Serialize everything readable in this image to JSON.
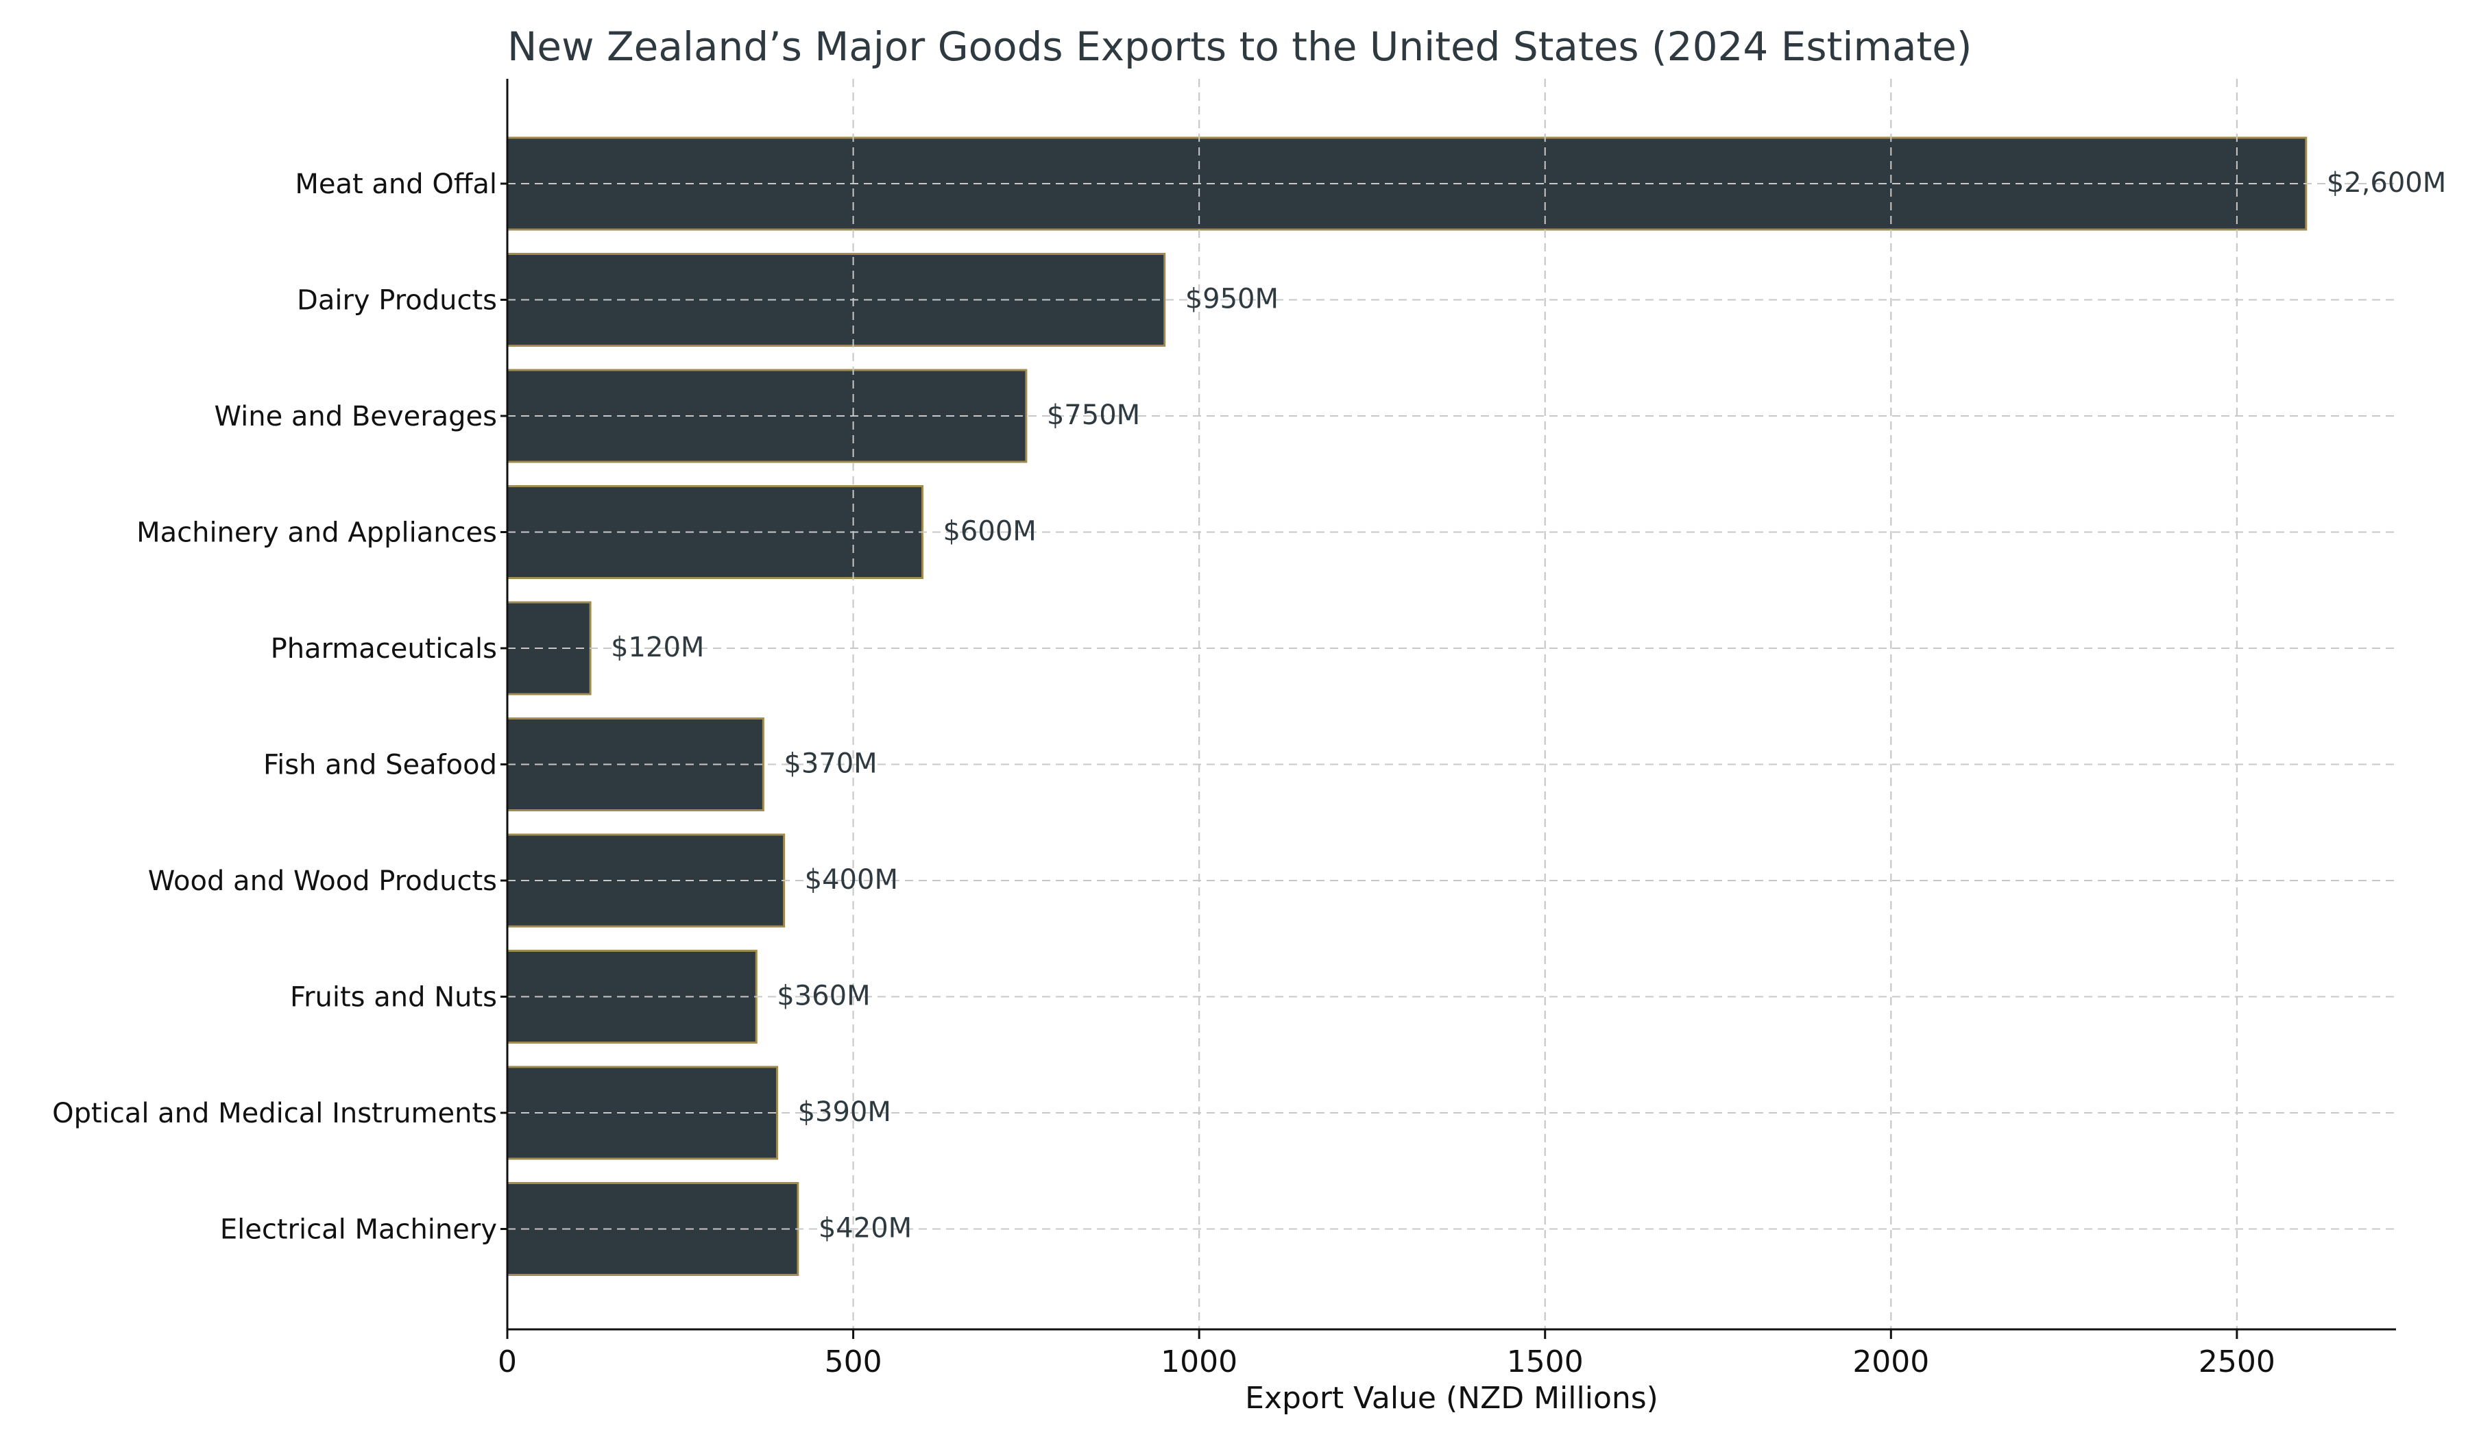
{
  "chart_data": {
    "type": "bar",
    "orientation": "horizontal",
    "title": "New Zealand’s Major Goods Exports to the United States (2024 Estimate)",
    "xlabel": "Export Value (NZD Millions)",
    "ylabel": "",
    "xlim": [
      0,
      2730
    ],
    "xticks": [
      0,
      500,
      1000,
      1500,
      2000,
      2500
    ],
    "grid": true,
    "categories": [
      "Meat and Offal",
      "Dairy Products",
      "Wine and Beverages",
      "Machinery and Appliances",
      "Pharmaceuticals",
      "Fish and Seafood",
      "Wood and Wood Products",
      "Fruits and Nuts",
      "Optical and Medical Instruments",
      "Electrical Machinery"
    ],
    "values": [
      2600,
      950,
      750,
      600,
      120,
      370,
      400,
      360,
      390,
      420
    ],
    "value_labels": [
      "$2,600M",
      "$950M",
      "$750M",
      "$600M",
      "$120M",
      "$370M",
      "$400M",
      "$360M",
      "$390M",
      "$420M"
    ],
    "colors": {
      "bar_fill": "#2e3a40",
      "bar_edge": "#a08c50"
    }
  }
}
